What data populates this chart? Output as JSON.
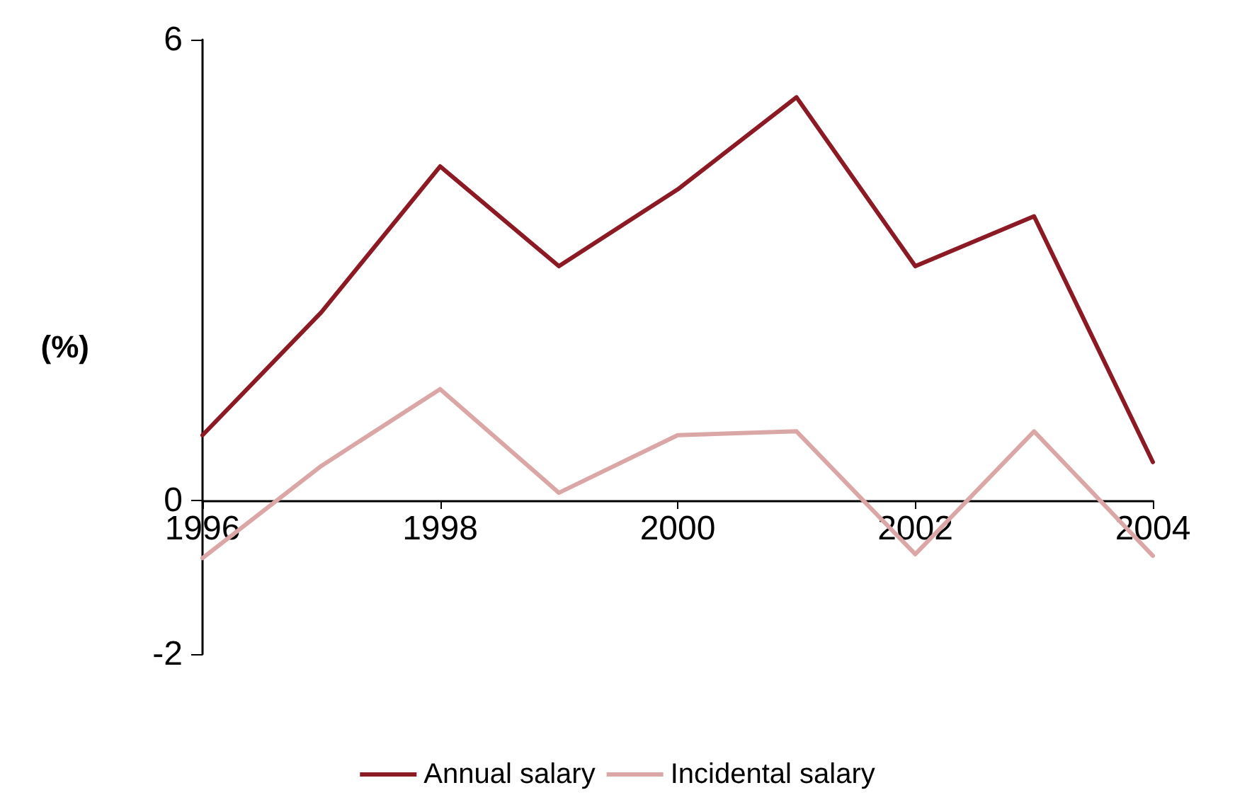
{
  "chart_data": {
    "type": "line",
    "x": [
      1996,
      1997,
      1998,
      1999,
      2000,
      2001,
      2002,
      2003,
      2004
    ],
    "ylabel": "(%)",
    "xlim": [
      1996,
      2004
    ],
    "xticks": [
      1996,
      1998,
      2000,
      2002,
      2004
    ],
    "ylim": [
      -2,
      6
    ],
    "yticks": [
      -2,
      0,
      6
    ],
    "grid": false,
    "legend": "bottom",
    "marker": "none",
    "series": [
      {
        "name": "Annual salary",
        "color": "#8b1a24",
        "values": [
          0.85,
          2.45,
          4.35,
          3.05,
          4.05,
          5.25,
          3.05,
          3.7,
          0.5
        ]
      },
      {
        "name": "Incidental salary",
        "color": "#dba6a6",
        "values": [
          -0.75,
          0.45,
          1.45,
          0.1,
          0.85,
          0.9,
          -0.7,
          0.9,
          -0.72
        ]
      }
    ]
  }
}
